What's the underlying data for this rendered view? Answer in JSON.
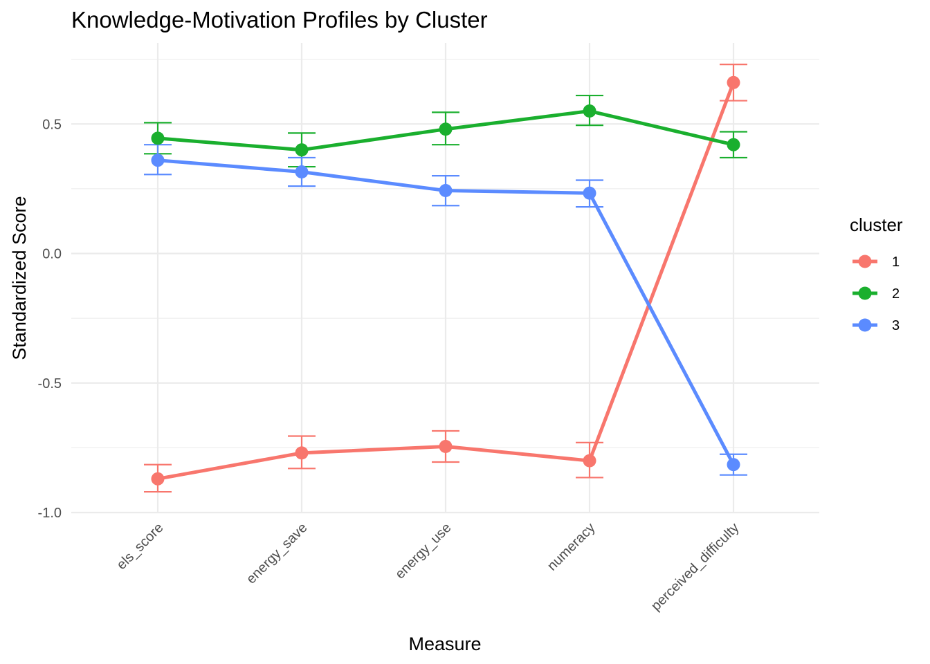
{
  "chart_data": {
    "type": "line",
    "title": "Knowledge-Motivation Profiles by Cluster",
    "xlabel": "Measure",
    "ylabel": "Standardized Score",
    "categories": [
      "els_score",
      "energy_save",
      "energy_use",
      "numeracy",
      "perceived_difficulty"
    ],
    "ylim": [
      -1.0,
      0.76
    ],
    "yticks": [
      {
        "value": -1.0,
        "label": "-1.0"
      },
      {
        "value": -0.5,
        "label": "-0.5"
      },
      {
        "value": 0.0,
        "label": "0.0"
      },
      {
        "value": 0.5,
        "label": "0.5"
      }
    ],
    "grid": true,
    "error_bars": true,
    "legend": {
      "title": "cluster",
      "position": "right"
    },
    "series": [
      {
        "name": "1",
        "color": "#F8766D",
        "values": [
          -0.87,
          -0.77,
          -0.745,
          -0.8,
          0.66
        ],
        "lower": [
          -0.92,
          -0.83,
          -0.805,
          -0.865,
          0.59
        ],
        "upper": [
          -0.815,
          -0.705,
          -0.685,
          -0.73,
          0.73
        ]
      },
      {
        "name": "2",
        "color": "#1AAF2E",
        "values": [
          0.445,
          0.4,
          0.48,
          0.55,
          0.42
        ],
        "lower": [
          0.385,
          0.335,
          0.42,
          0.495,
          0.37
        ],
        "upper": [
          0.505,
          0.465,
          0.545,
          0.61,
          0.47
        ]
      },
      {
        "name": "3",
        "color": "#5B8BFF",
        "values": [
          0.36,
          0.315,
          0.243,
          0.233,
          -0.815
        ],
        "lower": [
          0.305,
          0.26,
          0.185,
          0.18,
          -0.855
        ],
        "upper": [
          0.42,
          0.37,
          0.3,
          0.283,
          -0.775
        ]
      }
    ]
  }
}
